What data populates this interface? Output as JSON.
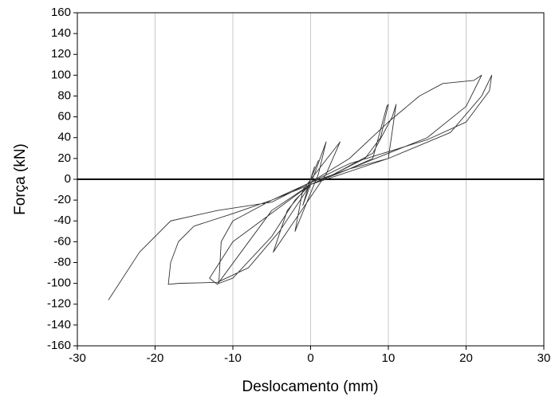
{
  "chart_data": {
    "type": "line",
    "x_label": "Deslocamento (mm)",
    "y_label": "Força (kN)",
    "xlim": [
      -30,
      30
    ],
    "xticks": [
      -30,
      -20,
      -10,
      0,
      10,
      20,
      30
    ],
    "ylim": [
      -160,
      160
    ],
    "yticks": [
      -160,
      -140,
      -120,
      -100,
      -80,
      -60,
      -40,
      -20,
      0,
      20,
      40,
      60,
      80,
      100,
      120,
      140,
      160
    ],
    "grid": true,
    "x": [
      0,
      0.5,
      0,
      -0.5,
      0,
      1,
      0,
      -1,
      0,
      2,
      1,
      -2,
      -1,
      3.8,
      2,
      -4.8,
      -3,
      0,
      5,
      8,
      9.8,
      10,
      9,
      7,
      3,
      0,
      -5,
      -10,
      -11.5,
      -11.8,
      -10,
      -5,
      -2,
      0,
      5,
      10,
      11,
      10.5,
      8,
      3,
      0,
      -5,
      -12,
      -13,
      -10,
      0,
      5,
      15,
      20,
      22,
      21,
      17,
      14,
      10,
      5,
      0,
      -5,
      -10,
      -15,
      -17,
      -18,
      -18.3,
      -17,
      -12,
      -8,
      -4,
      0,
      10,
      18,
      22,
      23.3,
      23,
      20,
      15,
      5,
      0,
      -5,
      -12,
      -18,
      -22,
      -26
    ],
    "series": [
      {
        "name": "Força",
        "color": "#333333",
        "values": [
          0,
          12,
          0,
          -10,
          0,
          18,
          0,
          -25,
          -5,
          36,
          5,
          -50,
          -10,
          36,
          5,
          -70,
          -30,
          -3,
          10,
          20,
          70,
          72,
          40,
          20,
          5,
          -5,
          -20,
          -40,
          -60,
          -100,
          -95,
          -55,
          -20,
          -5,
          10,
          20,
          72,
          60,
          25,
          5,
          -5,
          -30,
          -101,
          -95,
          -60,
          -5,
          10,
          40,
          70,
          100,
          95,
          92,
          80,
          55,
          20,
          -3,
          -20,
          -33,
          -45,
          -60,
          -80,
          -101,
          -100,
          -99,
          -85,
          -50,
          -5,
          20,
          45,
          80,
          100,
          85,
          55,
          38,
          15,
          -3,
          -22,
          -30,
          -40,
          -70,
          -116
        ]
      }
    ]
  }
}
